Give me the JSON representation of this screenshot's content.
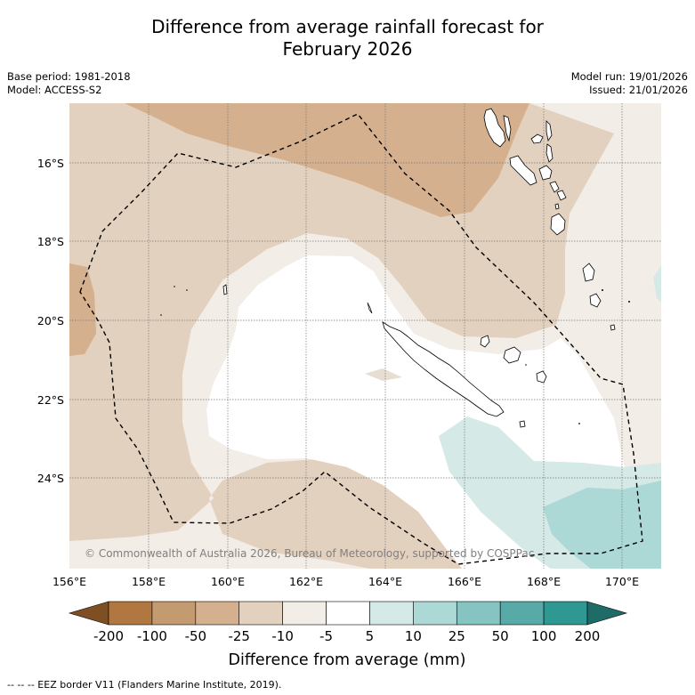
{
  "title": {
    "line1": "Difference from average rainfall forecast for",
    "line2": "February 2026"
  },
  "meta": {
    "base_period": "Base period: 1981-2018",
    "model": "Model: ACCESS-S2",
    "model_run": "Model run: 19/01/2026",
    "issued": "Issued: 21/01/2026"
  },
  "map": {
    "lat_labels": [
      "16°S",
      "18°S",
      "20°S",
      "22°S",
      "24°S"
    ],
    "lon_labels": [
      "156°E",
      "158°E",
      "160°E",
      "162°E",
      "164°E",
      "166°E",
      "168°E",
      "170°E"
    ],
    "copyright": "© Commonwealth of Australia 2026, Bureau of Meteorology, supported by COSPPac"
  },
  "colorbar": {
    "ticks": [
      "-200",
      "-100",
      "-50",
      "-25",
      "-10",
      "-5",
      "5",
      "10",
      "25",
      "50",
      "100",
      "200"
    ],
    "colors": [
      "#7e4f22",
      "#b07840",
      "#c49a70",
      "#d4b08e",
      "#e3d1bf",
      "#f2ede6",
      "#ffffff",
      "#d5e9e7",
      "#acd8d6",
      "#86c4c2",
      "#57aaa7",
      "#2f9892",
      "#1e6b67"
    ],
    "title": "Difference from average (mm)"
  },
  "footnote": "--  --  -- EEZ border V11 (Flanders Marine Institute, 2019)."
}
